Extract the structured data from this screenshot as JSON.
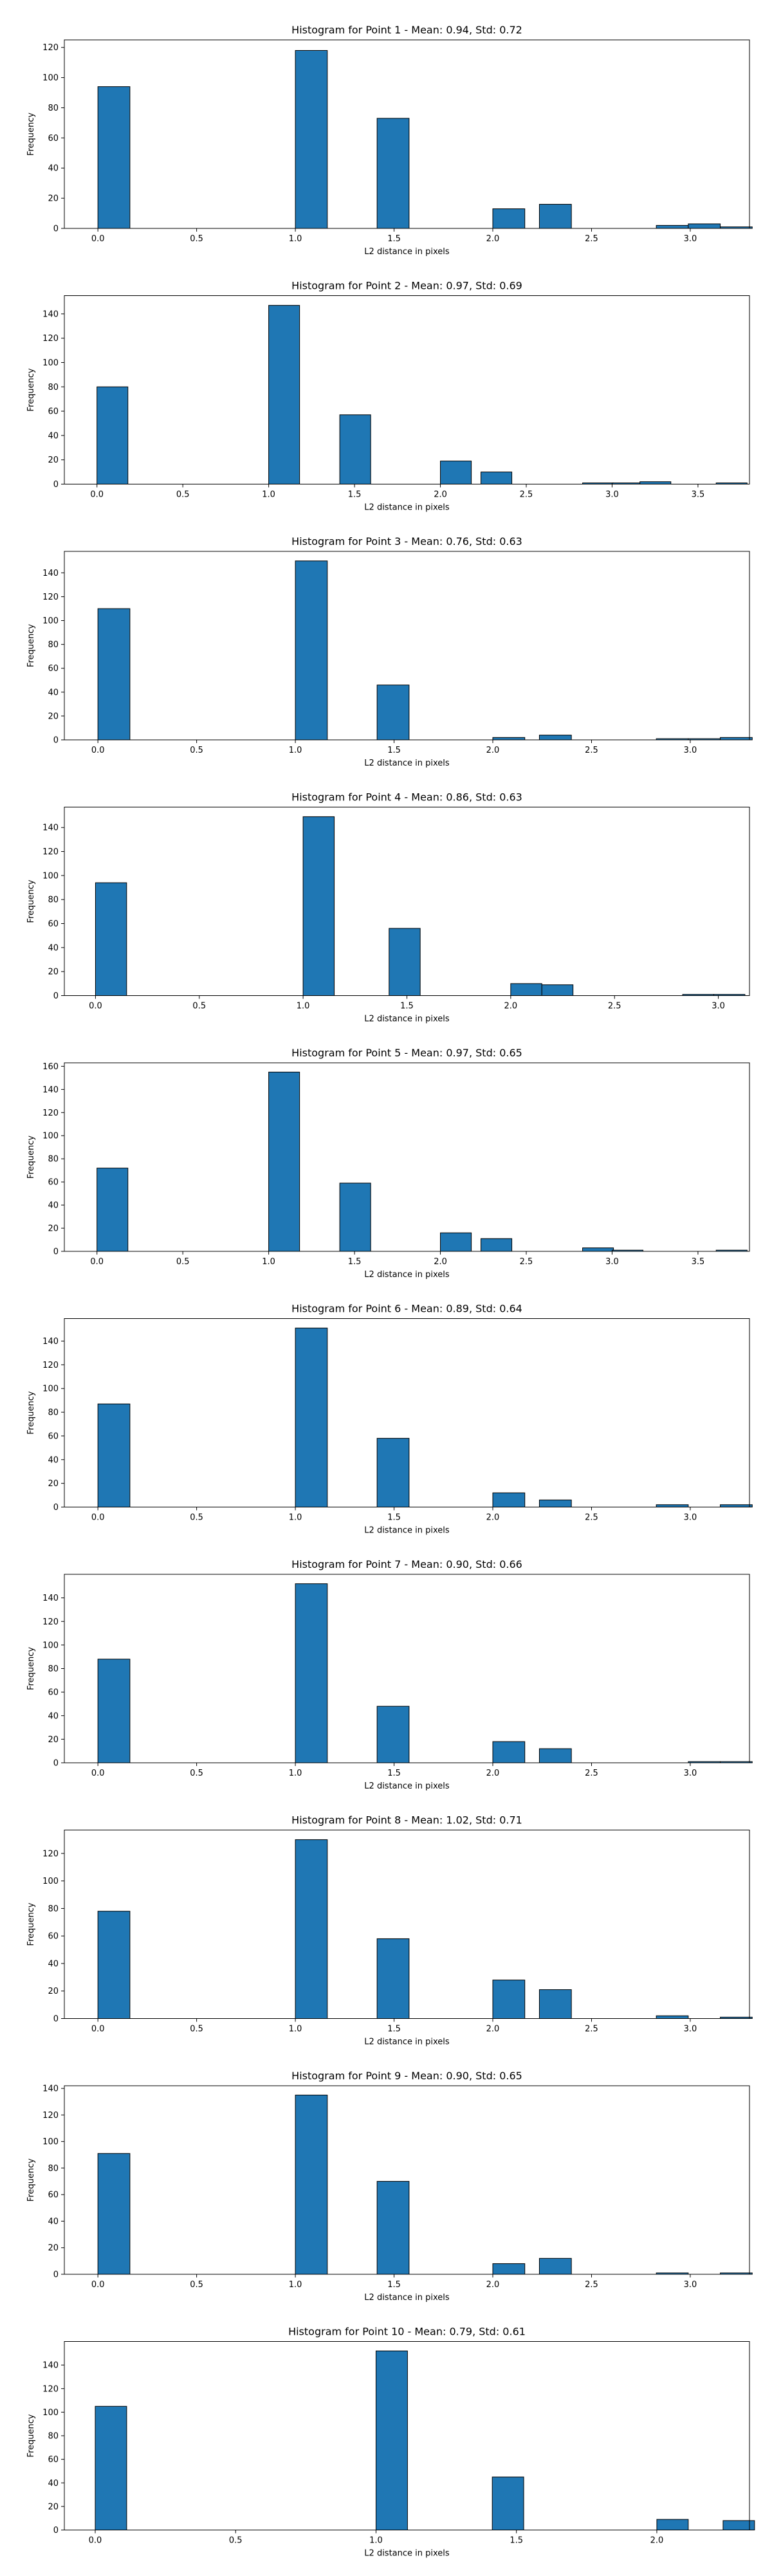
{
  "figure": {
    "bar_color": "#1f77b4",
    "edge_color": "#000000",
    "background": "#ffffff"
  },
  "chart_data": [
    {
      "type": "bar",
      "title": "Histogram for Point 1 - Mean: 0.94, Std: 0.72",
      "xlabel": "L2 distance in pixels",
      "ylabel": "Frequency",
      "xlim": [
        -0.17,
        3.3
      ],
      "ylim": [
        0,
        125
      ],
      "xticks": [
        0.0,
        0.5,
        1.0,
        1.5,
        2.0,
        2.5,
        3.0
      ],
      "yticks": [
        0,
        20,
        40,
        60,
        80,
        100,
        120
      ],
      "bin_width": 0.162,
      "bins": [
        {
          "x": 0.0,
          "value": 94
        },
        {
          "x": 1.0,
          "value": 118
        },
        {
          "x": 1.414,
          "value": 73
        },
        {
          "x": 2.0,
          "value": 13
        },
        {
          "x": 2.236,
          "value": 16
        },
        {
          "x": 2.828,
          "value": 2
        },
        {
          "x": 2.99,
          "value": 3
        },
        {
          "x": 3.152,
          "value": 1
        }
      ]
    },
    {
      "type": "bar",
      "title": "Histogram for Point 2 - Mean: 0.97, Std: 0.69",
      "xlabel": "L2 distance in pixels",
      "ylabel": "Frequency",
      "xlim": [
        -0.19,
        3.8
      ],
      "ylim": [
        0,
        155
      ],
      "xticks": [
        0.0,
        0.5,
        1.0,
        1.5,
        2.0,
        2.5,
        3.0,
        3.5
      ],
      "yticks": [
        0,
        20,
        40,
        60,
        80,
        100,
        120,
        140
      ],
      "bin_width": 0.18,
      "bins": [
        {
          "x": 0.0,
          "value": 80
        },
        {
          "x": 1.0,
          "value": 147
        },
        {
          "x": 1.414,
          "value": 57
        },
        {
          "x": 2.0,
          "value": 19
        },
        {
          "x": 2.236,
          "value": 10
        },
        {
          "x": 2.828,
          "value": 1
        },
        {
          "x": 3.0,
          "value": 1
        },
        {
          "x": 3.162,
          "value": 2
        },
        {
          "x": 3.606,
          "value": 1
        }
      ]
    },
    {
      "type": "bar",
      "title": "Histogram for Point 3 - Mean: 0.76, Std: 0.63",
      "xlabel": "L2 distance in pixels",
      "ylabel": "Frequency",
      "xlim": [
        -0.17,
        3.3
      ],
      "ylim": [
        0,
        158
      ],
      "xticks": [
        0.0,
        0.5,
        1.0,
        1.5,
        2.0,
        2.5,
        3.0
      ],
      "yticks": [
        0,
        20,
        40,
        60,
        80,
        100,
        120,
        140
      ],
      "bin_width": 0.162,
      "bins": [
        {
          "x": 0.0,
          "value": 110
        },
        {
          "x": 1.0,
          "value": 150
        },
        {
          "x": 1.414,
          "value": 46
        },
        {
          "x": 2.0,
          "value": 2
        },
        {
          "x": 2.236,
          "value": 4
        },
        {
          "x": 2.828,
          "value": 1
        },
        {
          "x": 2.99,
          "value": 1
        },
        {
          "x": 3.152,
          "value": 2
        }
      ]
    },
    {
      "type": "bar",
      "title": "Histogram for Point 4 - Mean: 0.86, Std: 0.63",
      "xlabel": "L2 distance in pixels",
      "ylabel": "Frequency",
      "xlim": [
        -0.15,
        3.15
      ],
      "ylim": [
        0,
        157
      ],
      "xticks": [
        0.0,
        0.5,
        1.0,
        1.5,
        2.0,
        2.5,
        3.0
      ],
      "yticks": [
        0,
        20,
        40,
        60,
        80,
        100,
        120,
        140
      ],
      "bin_width": 0.15,
      "bins": [
        {
          "x": 0.0,
          "value": 94
        },
        {
          "x": 1.0,
          "value": 149
        },
        {
          "x": 1.414,
          "value": 56
        },
        {
          "x": 2.0,
          "value": 10
        },
        {
          "x": 2.15,
          "value": 9
        },
        {
          "x": 2.828,
          "value": 1
        },
        {
          "x": 2.978,
          "value": 1
        }
      ]
    },
    {
      "type": "bar",
      "title": "Histogram for Point 5 - Mean: 0.97, Std: 0.65",
      "xlabel": "L2 distance in pixels",
      "ylabel": "Frequency",
      "xlim": [
        -0.19,
        3.8
      ],
      "ylim": [
        0,
        163
      ],
      "xticks": [
        0.0,
        0.5,
        1.0,
        1.5,
        2.0,
        2.5,
        3.0,
        3.5
      ],
      "yticks": [
        0,
        20,
        40,
        60,
        80,
        100,
        120,
        140,
        160
      ],
      "bin_width": 0.18,
      "bins": [
        {
          "x": 0.0,
          "value": 72
        },
        {
          "x": 1.0,
          "value": 155
        },
        {
          "x": 1.414,
          "value": 59
        },
        {
          "x": 2.0,
          "value": 16
        },
        {
          "x": 2.236,
          "value": 11
        },
        {
          "x": 2.828,
          "value": 3
        },
        {
          "x": 3.0,
          "value": 1
        },
        {
          "x": 3.606,
          "value": 1
        }
      ]
    },
    {
      "type": "bar",
      "title": "Histogram for Point 6 - Mean: 0.89, Std: 0.64",
      "xlabel": "L2 distance in pixels",
      "ylabel": "Frequency",
      "xlim": [
        -0.17,
        3.3
      ],
      "ylim": [
        0,
        159
      ],
      "xticks": [
        0.0,
        0.5,
        1.0,
        1.5,
        2.0,
        2.5,
        3.0
      ],
      "yticks": [
        0,
        20,
        40,
        60,
        80,
        100,
        120,
        140
      ],
      "bin_width": 0.162,
      "bins": [
        {
          "x": 0.0,
          "value": 87
        },
        {
          "x": 1.0,
          "value": 151
        },
        {
          "x": 1.414,
          "value": 58
        },
        {
          "x": 2.0,
          "value": 12
        },
        {
          "x": 2.236,
          "value": 6
        },
        {
          "x": 2.828,
          "value": 2
        },
        {
          "x": 3.152,
          "value": 2
        }
      ]
    },
    {
      "type": "bar",
      "title": "Histogram for Point 7 - Mean: 0.90, Std: 0.66",
      "xlabel": "L2 distance in pixels",
      "ylabel": "Frequency",
      "xlim": [
        -0.17,
        3.3
      ],
      "ylim": [
        0,
        160
      ],
      "xticks": [
        0.0,
        0.5,
        1.0,
        1.5,
        2.0,
        2.5,
        3.0
      ],
      "yticks": [
        0,
        20,
        40,
        60,
        80,
        100,
        120,
        140
      ],
      "bin_width": 0.162,
      "bins": [
        {
          "x": 0.0,
          "value": 88
        },
        {
          "x": 1.0,
          "value": 152
        },
        {
          "x": 1.414,
          "value": 48
        },
        {
          "x": 2.0,
          "value": 18
        },
        {
          "x": 2.236,
          "value": 12
        },
        {
          "x": 2.99,
          "value": 1
        },
        {
          "x": 3.152,
          "value": 1
        }
      ]
    },
    {
      "type": "bar",
      "title": "Histogram for Point 8 - Mean: 1.02, Std: 0.71",
      "xlabel": "L2 distance in pixels",
      "ylabel": "Frequency",
      "xlim": [
        -0.17,
        3.3
      ],
      "ylim": [
        0,
        137
      ],
      "xticks": [
        0.0,
        0.5,
        1.0,
        1.5,
        2.0,
        2.5,
        3.0
      ],
      "yticks": [
        0,
        20,
        40,
        60,
        80,
        100,
        120
      ],
      "bin_width": 0.162,
      "bins": [
        {
          "x": 0.0,
          "value": 78
        },
        {
          "x": 1.0,
          "value": 130
        },
        {
          "x": 1.414,
          "value": 58
        },
        {
          "x": 2.0,
          "value": 28
        },
        {
          "x": 2.236,
          "value": 21
        },
        {
          "x": 2.828,
          "value": 2
        },
        {
          "x": 3.152,
          "value": 1
        }
      ]
    },
    {
      "type": "bar",
      "title": "Histogram for Point 9 - Mean: 0.90, Std: 0.65",
      "xlabel": "L2 distance in pixels",
      "ylabel": "Frequency",
      "xlim": [
        -0.17,
        3.3
      ],
      "ylim": [
        0,
        142
      ],
      "xticks": [
        0.0,
        0.5,
        1.0,
        1.5,
        2.0,
        2.5,
        3.0
      ],
      "yticks": [
        0,
        20,
        40,
        60,
        80,
        100,
        120,
        140
      ],
      "bin_width": 0.162,
      "bins": [
        {
          "x": 0.0,
          "value": 91
        },
        {
          "x": 1.0,
          "value": 135
        },
        {
          "x": 1.414,
          "value": 70
        },
        {
          "x": 2.0,
          "value": 8
        },
        {
          "x": 2.236,
          "value": 12
        },
        {
          "x": 2.828,
          "value": 1
        },
        {
          "x": 3.152,
          "value": 1
        }
      ]
    },
    {
      "type": "bar",
      "title": "Histogram for Point 10 - Mean: 0.79, Std: 0.61",
      "xlabel": "L2 distance in pixels",
      "ylabel": "Frequency",
      "xlim": [
        -0.11,
        2.33
      ],
      "ylim": [
        0,
        160
      ],
      "xticks": [
        0.0,
        0.5,
        1.0,
        1.5,
        2.0
      ],
      "yticks": [
        0,
        20,
        40,
        60,
        80,
        100,
        120,
        140
      ],
      "bin_width": 0.112,
      "bins": [
        {
          "x": 0.0,
          "value": 105
        },
        {
          "x": 1.0,
          "value": 152
        },
        {
          "x": 1.414,
          "value": 45
        },
        {
          "x": 2.0,
          "value": 9
        },
        {
          "x": 2.236,
          "value": 8
        }
      ]
    }
  ]
}
